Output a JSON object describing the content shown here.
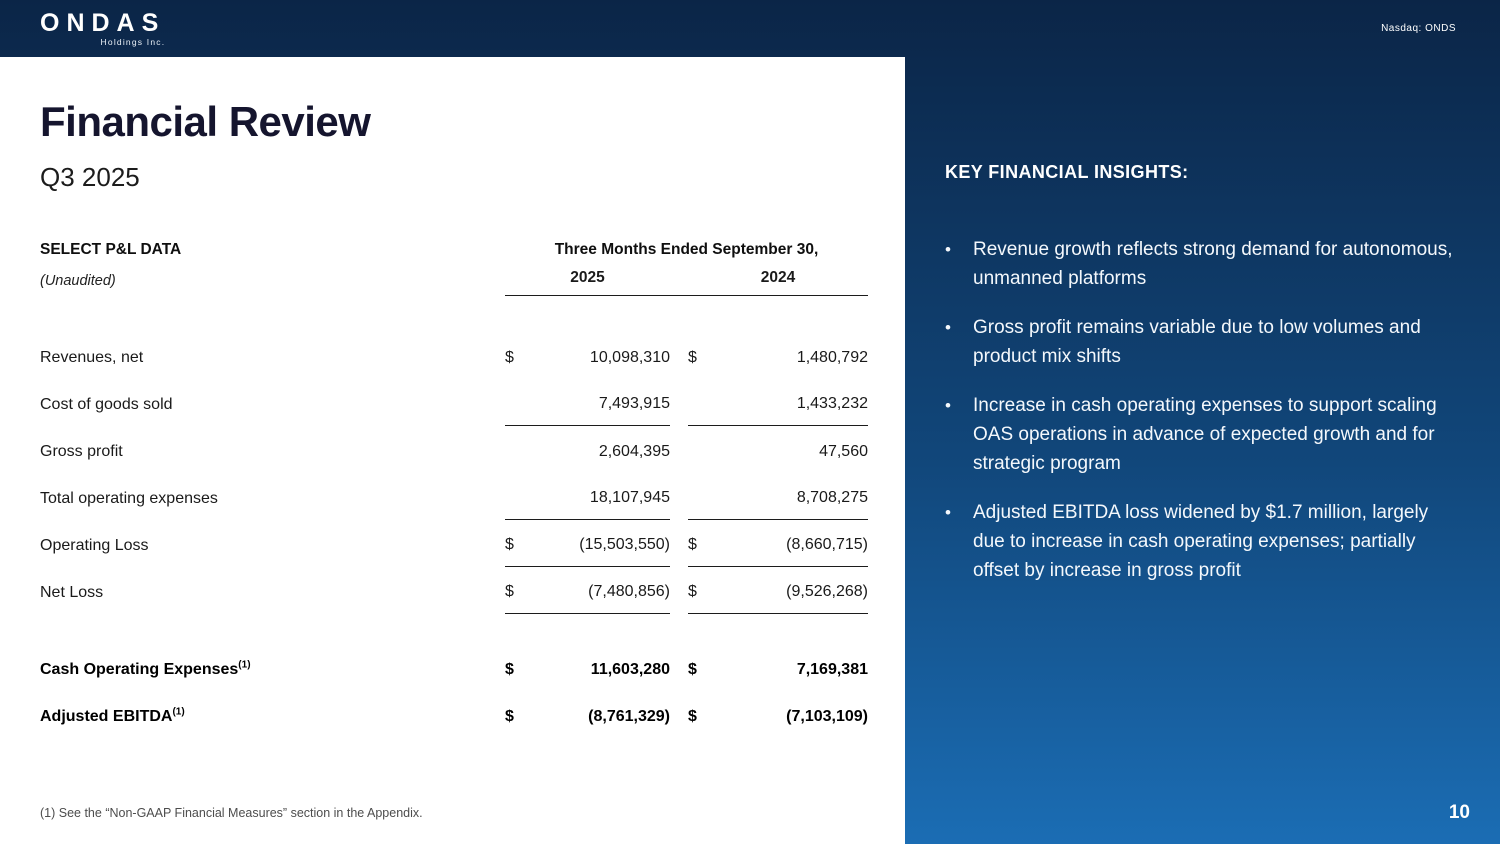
{
  "topbar": {
    "logo_title": "ONDAS",
    "logo_subtitle": "Holdings Inc.",
    "ticker": "Nasdaq: ONDS"
  },
  "main": {
    "title": "Financial Review",
    "subtitle": "Q3 2025",
    "footnote": "(1) See the “Non-GAAP Financial Measures” section in the Appendix."
  },
  "table": {
    "title": "SELECT P&L DATA",
    "subtitle": "(Unaudited)",
    "period_header": "Three Months Ended September 30,",
    "year_2025": "2025",
    "year_2024": "2024",
    "currency": "$",
    "footnote_marker": "(1)",
    "rows": [
      {
        "label": "Revenues, net",
        "v2025": "10,098,310",
        "v2024": "1,480,792"
      },
      {
        "label": "Cost of goods sold",
        "v2025": "7,493,915",
        "v2024": "1,433,232"
      },
      {
        "label": "Gross profit",
        "v2025": "2,604,395",
        "v2024": "47,560"
      },
      {
        "label": "Total operating expenses",
        "v2025": "18,107,945",
        "v2024": "8,708,275"
      },
      {
        "label": "Operating Loss",
        "v2025": "(15,503,550)",
        "v2024": "(8,660,715)"
      },
      {
        "label": "Net Loss",
        "v2025": "(7,480,856)",
        "v2024": "(9,526,268)"
      },
      {
        "label": "Cash Operating Expenses",
        "v2025": "11,603,280",
        "v2024": "7,169,381"
      },
      {
        "label": "Adjusted EBITDA",
        "v2025": "(8,761,329)",
        "v2024": "(7,103,109)"
      }
    ]
  },
  "insights": {
    "title": "KEY FINANCIAL INSIGHTS:",
    "bullets": [
      "Revenue growth reflects strong demand for autonomous, unmanned platforms",
      "Gross profit remains variable due to low volumes and product mix shifts",
      "Increase in cash operating expenses to support scaling OAS operations in advance of expected growth and for strategic program",
      "Adjusted EBITDA loss widened by $1.7 million, largely due to increase in cash operating expenses; partially offset by increase in gross profit"
    ]
  },
  "page_number": "10"
}
